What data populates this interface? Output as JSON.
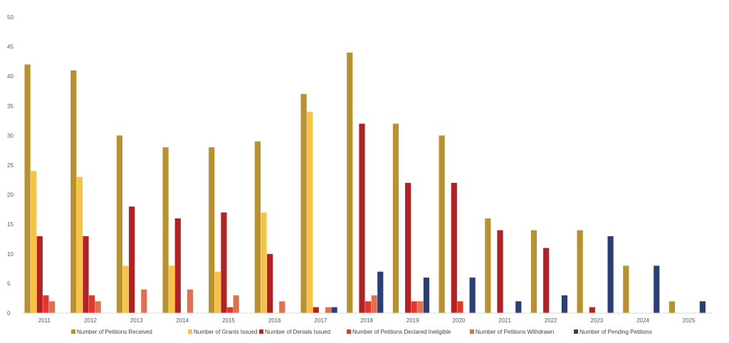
{
  "chart_data": {
    "type": "bar",
    "title": "",
    "xlabel": "",
    "ylabel": "",
    "ylim": [
      0,
      50
    ],
    "yticks": [
      0,
      5,
      10,
      15,
      20,
      25,
      30,
      35,
      40,
      45,
      50
    ],
    "grid": false,
    "legend_position": "bottom",
    "categories": [
      "2011",
      "2012",
      "2013",
      "2014",
      "2015",
      "2016",
      "2017",
      "2018",
      "2019",
      "2020",
      "2021",
      "2022",
      "2023",
      "2024",
      "2025"
    ],
    "series": [
      {
        "name": "Number of Petitions Received",
        "color": "#B8922E",
        "values": [
          42,
          41,
          30,
          28,
          28,
          29,
          37,
          44,
          32,
          30,
          16,
          14,
          14,
          8,
          2
        ]
      },
      {
        "name": "Number of Grants Issued",
        "color": "#F6C344",
        "values": [
          24,
          23,
          8,
          8,
          7,
          17,
          34,
          0,
          0,
          0,
          0,
          0,
          0,
          0,
          0
        ]
      },
      {
        "name": "Number of Denials Issued",
        "color": "#B22222",
        "values": [
          13,
          13,
          18,
          16,
          17,
          10,
          1,
          32,
          22,
          22,
          14,
          11,
          1,
          0,
          0
        ]
      },
      {
        "name": "Number of Petitions Declared Ineligible",
        "color": "#E8352A",
        "values": [
          3,
          3,
          0,
          0,
          1,
          0,
          0,
          2,
          2,
          2,
          0,
          0,
          0,
          0,
          0
        ]
      },
      {
        "name": "Number of Petitions Withdrawn",
        "color": "#E07050",
        "values": [
          2,
          2,
          4,
          4,
          3,
          2,
          1,
          3,
          2,
          0,
          0,
          0,
          0,
          0,
          0
        ]
      },
      {
        "name": "Number of Pending Petitions",
        "color": "#2A3F73",
        "values": [
          0,
          0,
          0,
          0,
          0,
          0,
          1,
          7,
          6,
          6,
          2,
          3,
          13,
          8,
          2
        ]
      }
    ]
  }
}
